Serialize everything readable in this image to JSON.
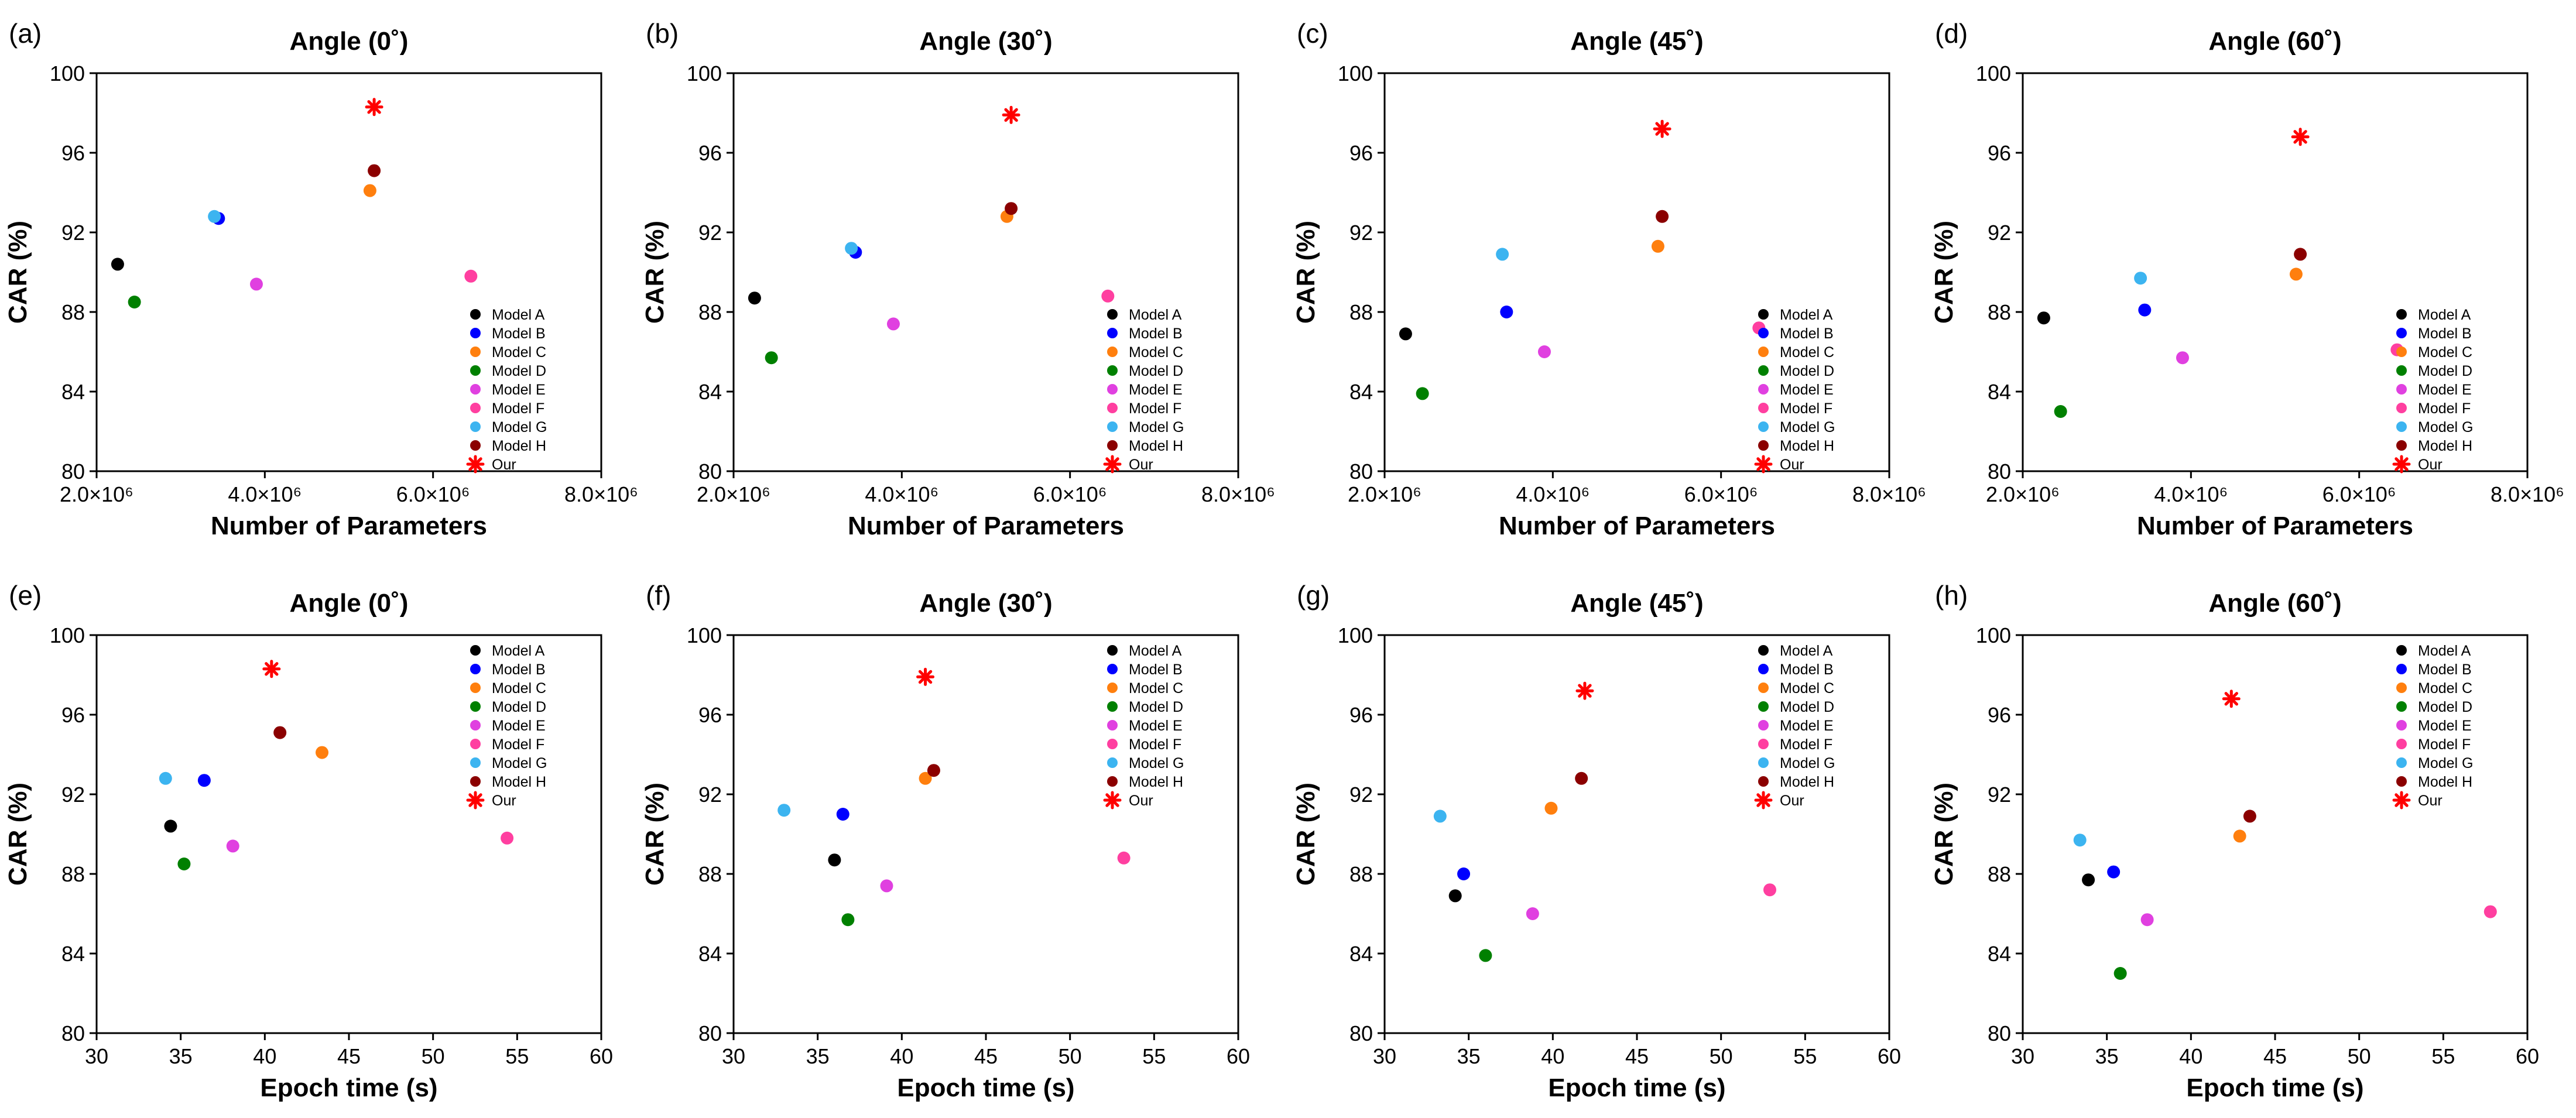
{
  "legend_colors": {
    "Model A": "#000000",
    "Model B": "#0000ff",
    "Model C": "#ff7f0e",
    "Model D": "#008000",
    "Model E": "#e040e0",
    "Model F": "#ff3fa0",
    "Model G": "#3cb4f0",
    "Model H": "#8b0000",
    "Our": "#ff0000"
  },
  "chart_data": [
    {
      "panel": "(a)",
      "type": "scatter",
      "title": "Angle (0˚)",
      "xlabel": "Number of Parameters",
      "ylabel": "CAR (%)",
      "x_scale": "params",
      "xlim": [
        2000000,
        8000000
      ],
      "ylim": [
        80,
        100
      ],
      "xticks": [
        2000000,
        4000000,
        6000000,
        8000000
      ],
      "xtick_labels": [
        "2.0×10⁶",
        "4.0×10⁶",
        "6.0×10⁶",
        "8.0×10⁶"
      ],
      "yticks": [
        80,
        84,
        88,
        92,
        96,
        100
      ],
      "legend_position": "bottom-right",
      "series": [
        {
          "name": "Model A",
          "x": 2250000,
          "y": 90.4
        },
        {
          "name": "Model B",
          "x": 3450000,
          "y": 92.7
        },
        {
          "name": "Model C",
          "x": 5250000,
          "y": 94.1
        },
        {
          "name": "Model D",
          "x": 2450000,
          "y": 88.5
        },
        {
          "name": "Model E",
          "x": 3900000,
          "y": 89.4
        },
        {
          "name": "Model F",
          "x": 6450000,
          "y": 89.8
        },
        {
          "name": "Model G",
          "x": 3400000,
          "y": 92.8
        },
        {
          "name": "Model H",
          "x": 5300000,
          "y": 95.1
        },
        {
          "name": "Our",
          "x": 5300000,
          "y": 98.3
        }
      ]
    },
    {
      "panel": "(b)",
      "type": "scatter",
      "title": "Angle (30˚)",
      "xlabel": "Number of Parameters",
      "ylabel": "CAR (%)",
      "x_scale": "params",
      "xlim": [
        2000000,
        8000000
      ],
      "ylim": [
        80,
        100
      ],
      "xticks": [
        2000000,
        4000000,
        6000000,
        8000000
      ],
      "xtick_labels": [
        "2.0×10⁶",
        "4.0×10⁶",
        "6.0×10⁶",
        "8.0×10⁶"
      ],
      "yticks": [
        80,
        84,
        88,
        92,
        96,
        100
      ],
      "legend_position": "bottom-right",
      "series": [
        {
          "name": "Model A",
          "x": 2250000,
          "y": 88.7
        },
        {
          "name": "Model B",
          "x": 3450000,
          "y": 91.0
        },
        {
          "name": "Model C",
          "x": 5250000,
          "y": 92.8
        },
        {
          "name": "Model D",
          "x": 2450000,
          "y": 85.7
        },
        {
          "name": "Model E",
          "x": 3900000,
          "y": 87.4
        },
        {
          "name": "Model F",
          "x": 6450000,
          "y": 88.8
        },
        {
          "name": "Model G",
          "x": 3400000,
          "y": 91.2
        },
        {
          "name": "Model H",
          "x": 5300000,
          "y": 93.2
        },
        {
          "name": "Our",
          "x": 5300000,
          "y": 97.9
        }
      ]
    },
    {
      "panel": "(c)",
      "type": "scatter",
      "title": "Angle (45˚)",
      "xlabel": "Number of Parameters",
      "ylabel": "CAR (%)",
      "x_scale": "params",
      "xlim": [
        2000000,
        8000000
      ],
      "ylim": [
        80,
        100
      ],
      "xticks": [
        2000000,
        4000000,
        6000000,
        8000000
      ],
      "xtick_labels": [
        "2.0×10⁶",
        "4.0×10⁶",
        "6.0×10⁶",
        "8.0×10⁶"
      ],
      "yticks": [
        80,
        84,
        88,
        92,
        96,
        100
      ],
      "legend_position": "bottom-right",
      "series": [
        {
          "name": "Model A",
          "x": 2250000,
          "y": 86.9
        },
        {
          "name": "Model B",
          "x": 3450000,
          "y": 88.0
        },
        {
          "name": "Model C",
          "x": 5250000,
          "y": 91.3
        },
        {
          "name": "Model D",
          "x": 2450000,
          "y": 83.9
        },
        {
          "name": "Model E",
          "x": 3900000,
          "y": 86.0
        },
        {
          "name": "Model F",
          "x": 6450000,
          "y": 87.2
        },
        {
          "name": "Model G",
          "x": 3400000,
          "y": 90.9
        },
        {
          "name": "Model H",
          "x": 5300000,
          "y": 92.8
        },
        {
          "name": "Our",
          "x": 5300000,
          "y": 97.2
        }
      ]
    },
    {
      "panel": "(d)",
      "type": "scatter",
      "title": "Angle (60˚)",
      "xlabel": "Number of Parameters",
      "ylabel": "CAR (%)",
      "x_scale": "params",
      "xlim": [
        2000000,
        8000000
      ],
      "ylim": [
        80,
        100
      ],
      "xticks": [
        2000000,
        4000000,
        6000000,
        8000000
      ],
      "xtick_labels": [
        "2.0×10⁶",
        "4.0×10⁶",
        "6.0×10⁶",
        "8.0×10⁶"
      ],
      "yticks": [
        80,
        84,
        88,
        92,
        96,
        100
      ],
      "legend_position": "bottom-right",
      "series": [
        {
          "name": "Model A",
          "x": 2250000,
          "y": 87.7
        },
        {
          "name": "Model B",
          "x": 3450000,
          "y": 88.1
        },
        {
          "name": "Model C",
          "x": 5250000,
          "y": 89.9
        },
        {
          "name": "Model D",
          "x": 2450000,
          "y": 83.0
        },
        {
          "name": "Model E",
          "x": 3900000,
          "y": 85.7
        },
        {
          "name": "Model F",
          "x": 6450000,
          "y": 86.1
        },
        {
          "name": "Model G",
          "x": 3400000,
          "y": 89.7
        },
        {
          "name": "Model H",
          "x": 5300000,
          "y": 90.9
        },
        {
          "name": "Our",
          "x": 5300000,
          "y": 96.8
        }
      ]
    },
    {
      "panel": "(e)",
      "type": "scatter",
      "title": "Angle (0˚)",
      "xlabel": "Epoch time (s)",
      "ylabel": "CAR (%)",
      "x_scale": "linear",
      "xlim": [
        30,
        60
      ],
      "ylim": [
        80,
        100
      ],
      "xticks": [
        30,
        35,
        40,
        45,
        50,
        55,
        60
      ],
      "xtick_labels": [
        "30",
        "35",
        "40",
        "45",
        "50",
        "55",
        "60"
      ],
      "yticks": [
        80,
        84,
        88,
        92,
        96,
        100
      ],
      "legend_position": "top-right",
      "series": [
        {
          "name": "Model A",
          "x": 34.4,
          "y": 90.4
        },
        {
          "name": "Model B",
          "x": 36.4,
          "y": 92.7
        },
        {
          "name": "Model C",
          "x": 43.4,
          "y": 94.1
        },
        {
          "name": "Model D",
          "x": 35.2,
          "y": 88.5
        },
        {
          "name": "Model E",
          "x": 38.1,
          "y": 89.4
        },
        {
          "name": "Model F",
          "x": 54.4,
          "y": 89.8
        },
        {
          "name": "Model G",
          "x": 34.1,
          "y": 92.8
        },
        {
          "name": "Model H",
          "x": 40.9,
          "y": 95.1
        },
        {
          "name": "Our",
          "x": 40.4,
          "y": 98.3
        }
      ]
    },
    {
      "panel": "(f)",
      "type": "scatter",
      "title": "Angle (30˚)",
      "xlabel": "Epoch time (s)",
      "ylabel": "CAR (%)",
      "x_scale": "linear",
      "xlim": [
        30,
        60
      ],
      "ylim": [
        80,
        100
      ],
      "xticks": [
        30,
        35,
        40,
        45,
        50,
        55,
        60
      ],
      "xtick_labels": [
        "30",
        "35",
        "40",
        "45",
        "50",
        "55",
        "60"
      ],
      "yticks": [
        80,
        84,
        88,
        92,
        96,
        100
      ],
      "legend_position": "top-right",
      "series": [
        {
          "name": "Model A",
          "x": 36.0,
          "y": 88.7
        },
        {
          "name": "Model B",
          "x": 36.5,
          "y": 91.0
        },
        {
          "name": "Model C",
          "x": 41.4,
          "y": 92.8
        },
        {
          "name": "Model D",
          "x": 36.8,
          "y": 85.7
        },
        {
          "name": "Model E",
          "x": 39.1,
          "y": 87.4
        },
        {
          "name": "Model F",
          "x": 53.2,
          "y": 88.8
        },
        {
          "name": "Model G",
          "x": 33.0,
          "y": 91.2
        },
        {
          "name": "Model H",
          "x": 41.9,
          "y": 93.2
        },
        {
          "name": "Our",
          "x": 41.4,
          "y": 97.9
        }
      ]
    },
    {
      "panel": "(g)",
      "type": "scatter",
      "title": "Angle (45˚)",
      "xlabel": "Epoch time (s)",
      "ylabel": "CAR (%)",
      "x_scale": "linear",
      "xlim": [
        30,
        60
      ],
      "ylim": [
        80,
        100
      ],
      "xticks": [
        30,
        35,
        40,
        45,
        50,
        55,
        60
      ],
      "xtick_labels": [
        "30",
        "35",
        "40",
        "45",
        "50",
        "55",
        "60"
      ],
      "yticks": [
        80,
        84,
        88,
        92,
        96,
        100
      ],
      "legend_position": "top-right",
      "series": [
        {
          "name": "Model A",
          "x": 34.2,
          "y": 86.9
        },
        {
          "name": "Model B",
          "x": 34.7,
          "y": 88.0
        },
        {
          "name": "Model C",
          "x": 39.9,
          "y": 91.3
        },
        {
          "name": "Model D",
          "x": 36.0,
          "y": 83.9
        },
        {
          "name": "Model E",
          "x": 38.8,
          "y": 86.0
        },
        {
          "name": "Model F",
          "x": 52.9,
          "y": 87.2
        },
        {
          "name": "Model G",
          "x": 33.3,
          "y": 90.9
        },
        {
          "name": "Model H",
          "x": 41.7,
          "y": 92.8
        },
        {
          "name": "Our",
          "x": 41.9,
          "y": 97.2
        }
      ]
    },
    {
      "panel": "(h)",
      "type": "scatter",
      "title": "Angle (60˚)",
      "xlabel": "Epoch time (s)",
      "ylabel": "CAR (%)",
      "x_scale": "linear",
      "xlim": [
        30,
        60
      ],
      "ylim": [
        80,
        100
      ],
      "xticks": [
        30,
        35,
        40,
        45,
        50,
        55,
        60
      ],
      "xtick_labels": [
        "30",
        "35",
        "40",
        "45",
        "50",
        "55",
        "60"
      ],
      "yticks": [
        80,
        84,
        88,
        92,
        96,
        100
      ],
      "legend_position": "top-right",
      "series": [
        {
          "name": "Model A",
          "x": 33.9,
          "y": 87.7
        },
        {
          "name": "Model B",
          "x": 35.4,
          "y": 88.1
        },
        {
          "name": "Model C",
          "x": 42.9,
          "y": 89.9
        },
        {
          "name": "Model D",
          "x": 35.8,
          "y": 83.0
        },
        {
          "name": "Model E",
          "x": 37.4,
          "y": 85.7
        },
        {
          "name": "Model F",
          "x": 57.8,
          "y": 86.1
        },
        {
          "name": "Model G",
          "x": 33.4,
          "y": 89.7
        },
        {
          "name": "Model H",
          "x": 43.5,
          "y": 90.9
        },
        {
          "name": "Our",
          "x": 42.4,
          "y": 96.8
        }
      ]
    }
  ]
}
